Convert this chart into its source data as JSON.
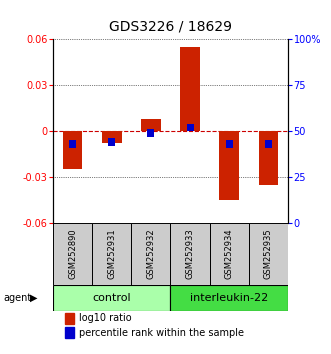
{
  "title": "GDS3226 / 18629",
  "samples": [
    "GSM252890",
    "GSM252931",
    "GSM252932",
    "GSM252933",
    "GSM252934",
    "GSM252935"
  ],
  "log10_ratio": [
    -0.025,
    -0.008,
    0.008,
    0.055,
    -0.045,
    -0.035
  ],
  "percentile_rank": [
    43,
    44,
    49,
    52,
    43,
    43
  ],
  "ylim_left": [
    -0.06,
    0.06
  ],
  "ylim_right": [
    0,
    100
  ],
  "yticks_left": [
    -0.06,
    -0.03,
    0,
    0.03,
    0.06
  ],
  "ytick_labels_left": [
    "-0.06",
    "-0.03",
    "0",
    "0.03",
    "0.06"
  ],
  "yticks_right": [
    0,
    25,
    50,
    75,
    100
  ],
  "ytick_labels_right": [
    "0",
    "25",
    "50",
    "75",
    "100%"
  ],
  "groups": [
    {
      "label": "control",
      "samples": [
        0,
        1,
        2
      ],
      "color": "#AAFFAA"
    },
    {
      "label": "interleukin-22",
      "samples": [
        3,
        4,
        5
      ],
      "color": "#44DD44"
    }
  ],
  "bar_color_red": "#CC2200",
  "bar_color_blue": "#0000CC",
  "bar_width": 0.5,
  "blue_bar_width": 0.18,
  "agent_label": "agent",
  "legend_red": "log10 ratio",
  "legend_blue": "percentile rank within the sample",
  "sample_box_color": "#CCCCCC",
  "zero_line_color": "#CC0000",
  "title_fontsize": 10,
  "tick_fontsize": 7,
  "label_fontsize": 7,
  "sample_fontsize": 6,
  "group_fontsize": 8,
  "legend_fontsize": 7
}
